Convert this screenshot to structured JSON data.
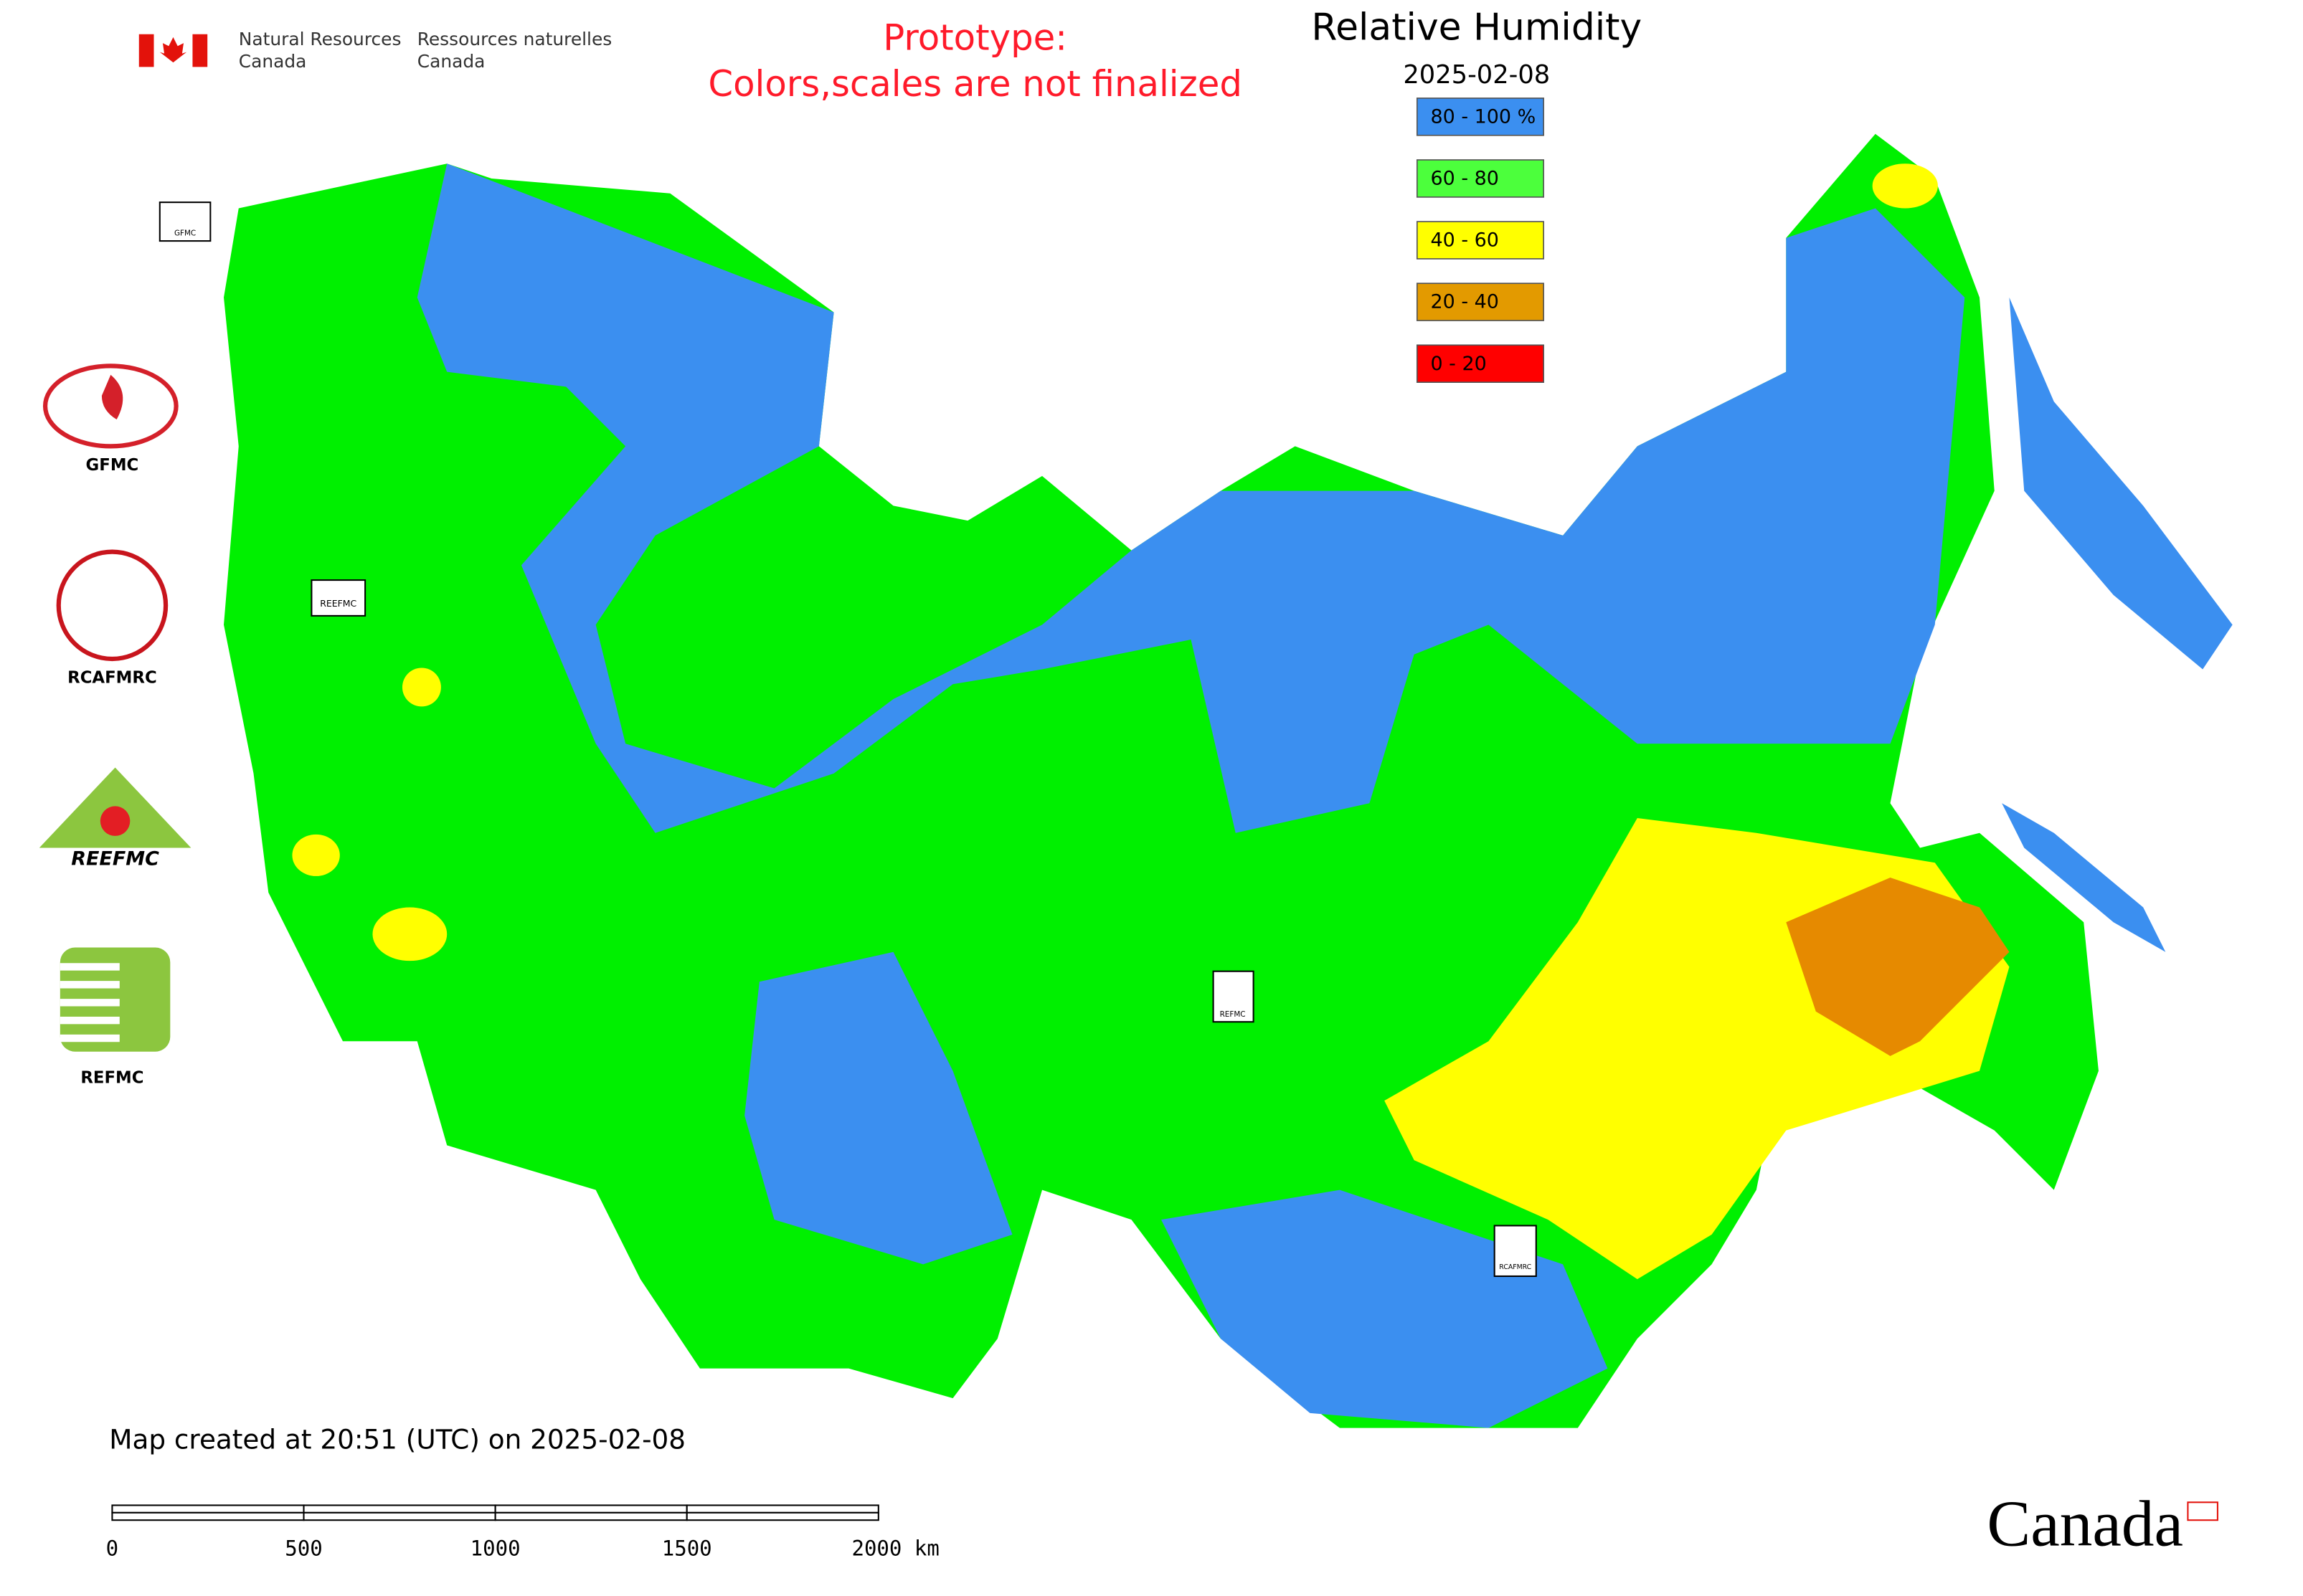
{
  "header": {
    "department_en": [
      "Natural Resources",
      "Canada"
    ],
    "department_fr": [
      "Ressources naturelles",
      "Canada"
    ],
    "notice": [
      "Prototype:",
      "Colors,scales are not finalized"
    ]
  },
  "map": {
    "title": "Relative Humidity",
    "date": "2025-02-08",
    "legend": [
      {
        "label": "80 - 100 %",
        "color": "#3b8ff0"
      },
      {
        "label": "60 - 80",
        "color": "#4cff3c"
      },
      {
        "label": "40 - 60",
        "color": "#ffff00"
      },
      {
        "label": "20 - 40",
        "color": "#e39a00"
      },
      {
        "label": "0 - 20",
        "color": "#ff0000"
      }
    ],
    "partner_logos": [
      "GFMC",
      "RCAFMRC",
      "REEFMC",
      "REFMC"
    ],
    "map_markers": [
      "GFMC",
      "REEFMC",
      "REFMC",
      "RCAFMRC"
    ],
    "created": "Map created at 20:51 (UTC) on 2025-02-08",
    "scale_labels": [
      "0",
      "500",
      "1000",
      "1500",
      "2000 km"
    ]
  },
  "footer": {
    "wordmark": "Canada"
  }
}
